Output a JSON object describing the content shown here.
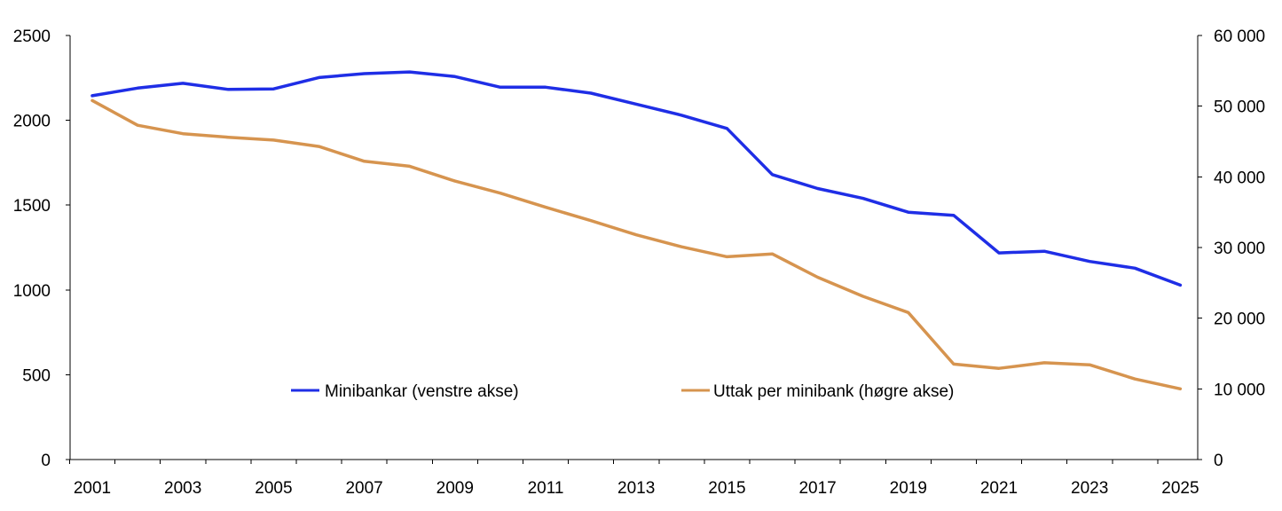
{
  "chart_data": {
    "type": "line",
    "title": "",
    "xlabel": "",
    "ylabel_left": "",
    "ylabel_right": "",
    "x": [
      2001,
      2002,
      2003,
      2004,
      2005,
      2006,
      2007,
      2008,
      2009,
      2010,
      2011,
      2012,
      2013,
      2014,
      2015,
      2016,
      2017,
      2018,
      2019,
      2020,
      2021,
      2022,
      2023,
      2024,
      2025
    ],
    "x_tick_labels": [
      "2001",
      "2003",
      "2005",
      "2007",
      "2009",
      "2011",
      "2013",
      "2015",
      "2017",
      "2019",
      "2021",
      "2023",
      "2025"
    ],
    "ylim_left": [
      0,
      2500
    ],
    "ylim_right": [
      0,
      60000
    ],
    "y_left_tick_labels": [
      "0",
      "500",
      "1000",
      "1500",
      "2000",
      "2500"
    ],
    "y_right_tick_labels": [
      "0",
      "10 000",
      "20 000",
      "30 000",
      "40 000",
      "50 000",
      "60 000"
    ],
    "grid": false,
    "legend_position": "inside-bottom",
    "series": [
      {
        "name": "Minibankar (venstre akse)",
        "axis": "left",
        "color": "#1f2ee6",
        "values": [
          2145,
          2190,
          2218,
          2182,
          2185,
          2252,
          2275,
          2285,
          2258,
          2195,
          2195,
          2160,
          2095,
          2030,
          1952,
          1680,
          1598,
          1540,
          1458,
          1440,
          1218,
          1228,
          1168,
          1128,
          1028
        ]
      },
      {
        "name": "Uttak per minibank (høgre akse)",
        "axis": "right",
        "color": "#d6944f",
        "values": [
          50800,
          47300,
          46100,
          45600,
          45200,
          44300,
          42200,
          41500,
          39400,
          37700,
          35700,
          33800,
          31800,
          30100,
          28700,
          29100,
          25800,
          23100,
          20800,
          13500,
          12900,
          13700,
          13400,
          11400,
          10000
        ]
      }
    ]
  }
}
